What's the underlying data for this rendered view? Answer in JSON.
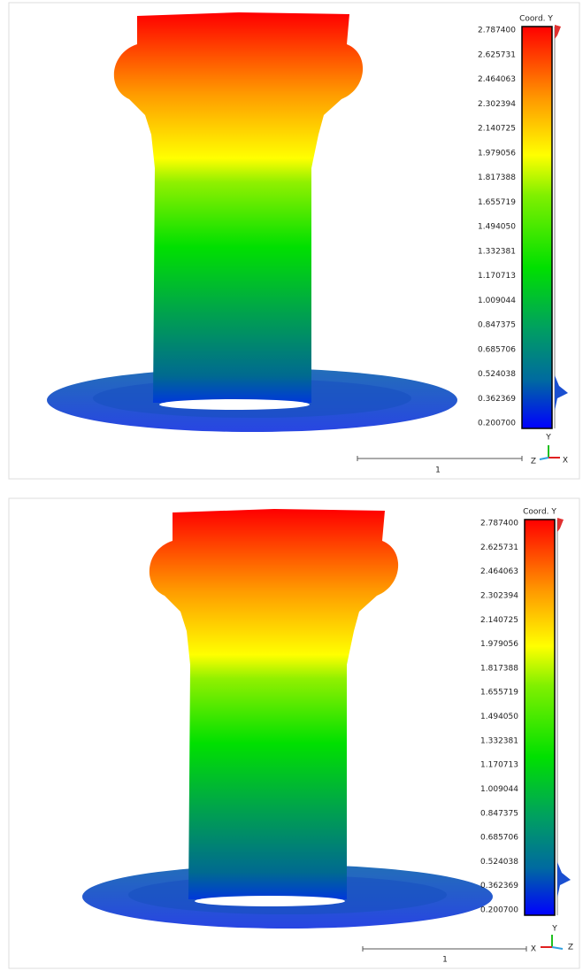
{
  "panels": [
    {
      "scale_title": "Coord. Y",
      "scale_ticks": [
        "2.787400",
        "2.625731",
        "2.464063",
        "2.302394",
        "2.140725",
        "1.979056",
        "1.817388",
        "1.655719",
        "1.494050",
        "1.332381",
        "1.170713",
        "1.009044",
        "0.847375",
        "0.685706",
        "0.524038",
        "0.362369",
        "0.200700"
      ],
      "scale_bar_label": "1",
      "axes": {
        "x": "X",
        "y": "Y",
        "z": "Z"
      }
    },
    {
      "scale_title": "Coord. Y",
      "scale_ticks": [
        "2.787400",
        "2.625731",
        "2.464063",
        "2.302394",
        "2.140725",
        "1.979056",
        "1.817388",
        "1.655719",
        "1.494050",
        "1.332381",
        "1.170713",
        "1.009044",
        "0.847375",
        "0.685706",
        "0.524038",
        "0.362369",
        "0.200700"
      ],
      "scale_bar_label": "1",
      "axes": {
        "x": "X",
        "y": "Y",
        "z": "Z"
      }
    }
  ]
}
